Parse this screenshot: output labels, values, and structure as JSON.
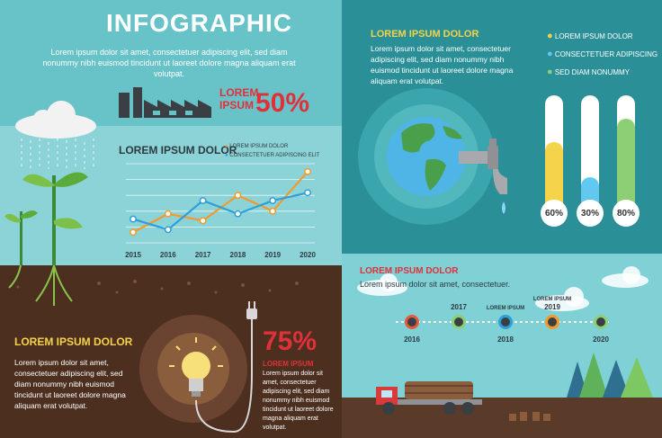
{
  "header": {
    "title": "INFOGRAPHIC",
    "subtitle": "Lorem ipsum dolor sit amet, consectetuer adipiscing elit, sed diam nonummy nibh euismod tincidunt ut laoreet dolore magna aliquam erat volutpat."
  },
  "factory": {
    "line1": "LOREM",
    "line2": "IPSUM",
    "percent": "50%"
  },
  "line_chart": {
    "title": "LOREM IPSUM DOLOR",
    "legend": [
      "LOREM IPSUM DOLOR",
      "CONSECTETUER ADIPISCING ELIT"
    ],
    "years": [
      "2015",
      "2016",
      "2017",
      "2018",
      "2019",
      "2020"
    ]
  },
  "chart_data": {
    "type": "line",
    "categories": [
      "2015",
      "2016",
      "2017",
      "2018",
      "2019",
      "2020"
    ],
    "series": [
      {
        "name": "LOREM IPSUM DOLOR",
        "color": "#f39a2b",
        "values": [
          2,
          5.5,
          4.2,
          9,
          6,
          13.5
        ]
      },
      {
        "name": "CONSECTETUER ADIPISCING ELIT",
        "color": "#2d9fd9",
        "values": [
          4.5,
          2.5,
          8,
          5.5,
          8,
          9.5
        ]
      }
    ],
    "ylim": [
      0,
      15
    ]
  },
  "water": {
    "heading": "LOREM IPSUM DOLOR",
    "text": "Lorem ipsum dolor sit amet, consectetuer adipiscing elit, sed diam nonummy nibh euismod tincidunt ut laoreet dolore magna aliquam erat volutpat.",
    "legend": [
      {
        "label": "LOREM IPSUM DOLOR",
        "color": "#f5d34a"
      },
      {
        "label": "CONSECTETUER ADIPISCING",
        "color": "#62c8f0"
      },
      {
        "label": "SED DIAM NONUMMY",
        "color": "#8ccf74"
      }
    ],
    "bars": [
      {
        "value": 60,
        "label": "60%",
        "color": "#f5d34a"
      },
      {
        "value": 30,
        "label": "30%",
        "color": "#62c8f0"
      },
      {
        "value": 80,
        "label": "80%",
        "color": "#8ccf74"
      }
    ]
  },
  "energy": {
    "heading": "LOREM IPSUM DOLOR",
    "text": "Lorem ipsum dolor sit amet, consectetuer adipiscing elit, sed diam nonummy nibh euismod tincidunt ut laoreet dolore magna aliquam erat volutpat.",
    "percent": "75%",
    "percent_label": "LOREM IPSUM",
    "percent_text": "Lorem ipsum dolor sit amet, consectetuer adipiscing elit, sed diam nonummy nibh euismod tincidunt ut laoreet dolore magna aliquam erat volutpat."
  },
  "timeline": {
    "heading": "LOREM IPSUM DOLOR",
    "subtitle": "Lorem ipsum dolor sit amet, consectetuer.",
    "nodes": [
      {
        "year": "2016",
        "label": ""
      },
      {
        "year": "2017",
        "label": ""
      },
      {
        "year": "2018",
        "label": "LOREM IPSUM"
      },
      {
        "year": "2019",
        "label": "LOREM IPSUM"
      },
      {
        "year": "2020",
        "label": ""
      }
    ],
    "node_colors": [
      "#e25a3c",
      "#8ccf74",
      "#2d9fd9",
      "#f39a2b",
      "#8ccf74"
    ]
  }
}
